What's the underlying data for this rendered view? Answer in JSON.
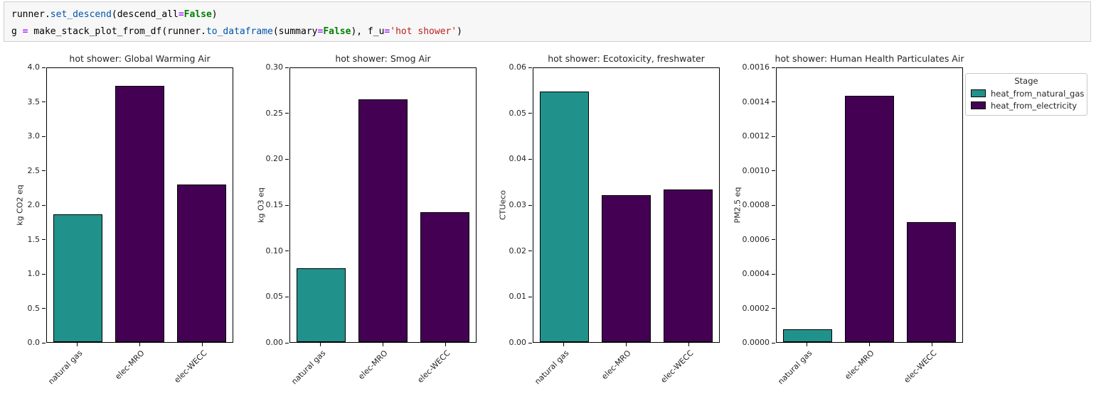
{
  "code_cell": {
    "lines": [
      {
        "tokens": [
          {
            "text": "runner.",
            "cls": "v"
          },
          {
            "text": "set_descend",
            "cls": "prop"
          },
          {
            "text": "(descend_all",
            "cls": "v"
          },
          {
            "text": "=",
            "cls": "op"
          },
          {
            "text": "False",
            "cls": "kw"
          },
          {
            "text": ")",
            "cls": "v"
          }
        ]
      },
      {
        "tokens": [
          {
            "text": "g ",
            "cls": "v"
          },
          {
            "text": "=",
            "cls": "op"
          },
          {
            "text": " make_stack_plot_from_df(runner.",
            "cls": "v"
          },
          {
            "text": "to_dataframe",
            "cls": "prop"
          },
          {
            "text": "(summary",
            "cls": "v"
          },
          {
            "text": "=",
            "cls": "op"
          },
          {
            "text": "False",
            "cls": "kw"
          },
          {
            "text": "), f_u",
            "cls": "v"
          },
          {
            "text": "=",
            "cls": "op"
          },
          {
            "text": "'hot shower'",
            "cls": "str"
          },
          {
            "text": ")",
            "cls": "v"
          }
        ]
      }
    ]
  },
  "colors": {
    "heat_from_natural_gas": "#21918c",
    "heat_from_electricity": "#440154",
    "bar_edge": "#000000"
  },
  "legend": {
    "title": "Stage",
    "entries": [
      {
        "label": "heat_from_natural_gas",
        "color": "#21918c"
      },
      {
        "label": "heat_from_electricity",
        "color": "#440154"
      }
    ]
  },
  "chart_data": [
    {
      "type": "bar",
      "title": "hot shower: Global Warming Air",
      "ylabel": "kg CO2 eq",
      "categories": [
        "natural gas",
        "elec-MRO",
        "elec-WECC"
      ],
      "values": [
        1.87,
        3.74,
        2.3
      ],
      "stages": [
        "heat_from_natural_gas",
        "heat_from_electricity",
        "heat_from_electricity"
      ],
      "ylim": [
        0,
        4.0
      ],
      "ytick_labels": [
        "0.0",
        "0.5",
        "1.0",
        "1.5",
        "2.0",
        "2.5",
        "3.0",
        "3.5",
        "4.0"
      ],
      "ytick_values": [
        0,
        0.5,
        1.0,
        1.5,
        2.0,
        2.5,
        3.0,
        3.5,
        4.0
      ],
      "grid": false
    },
    {
      "type": "bar",
      "title": "hot shower: Smog Air",
      "ylabel": "kg O3 eq",
      "categories": [
        "natural gas",
        "elec-MRO",
        "elec-WECC"
      ],
      "values": [
        0.081,
        0.266,
        0.142
      ],
      "stages": [
        "heat_from_natural_gas",
        "heat_from_electricity",
        "heat_from_electricity"
      ],
      "ylim": [
        0,
        0.3
      ],
      "ytick_labels": [
        "0.00",
        "0.05",
        "0.10",
        "0.15",
        "0.20",
        "0.25",
        "0.30"
      ],
      "ytick_values": [
        0,
        0.05,
        0.1,
        0.15,
        0.2,
        0.25,
        0.3
      ],
      "grid": false
    },
    {
      "type": "bar",
      "title": "hot shower: Ecotoxicity, freshwater",
      "ylabel": "CTUeco",
      "categories": [
        "natural gas",
        "elec-MRO",
        "elec-WECC"
      ],
      "values": [
        0.0548,
        0.0322,
        0.0334
      ],
      "stages": [
        "heat_from_natural_gas",
        "heat_from_electricity",
        "heat_from_electricity"
      ],
      "ylim": [
        0,
        0.06
      ],
      "ytick_labels": [
        "0.00",
        "0.01",
        "0.02",
        "0.03",
        "0.04",
        "0.05",
        "0.06"
      ],
      "ytick_values": [
        0,
        0.01,
        0.02,
        0.03,
        0.04,
        0.05,
        0.06
      ],
      "grid": false
    },
    {
      "type": "bar",
      "title": "hot shower: Human Health Particulates Air",
      "ylabel": "PM2.5 eq",
      "categories": [
        "natural gas",
        "elec-MRO",
        "elec-WECC"
      ],
      "values": [
        7.5e-05,
        0.00144,
        0.0007
      ],
      "stages": [
        "heat_from_natural_gas",
        "heat_from_electricity",
        "heat_from_electricity"
      ],
      "ylim": [
        0,
        0.0016
      ],
      "ytick_labels": [
        "0.0000",
        "0.0002",
        "0.0004",
        "0.0006",
        "0.0008",
        "0.0010",
        "0.0012",
        "0.0014",
        "0.0016"
      ],
      "ytick_values": [
        0,
        0.0002,
        0.0004,
        0.0006,
        0.0008,
        0.001,
        0.0012,
        0.0014,
        0.0016
      ],
      "grid": false
    }
  ]
}
